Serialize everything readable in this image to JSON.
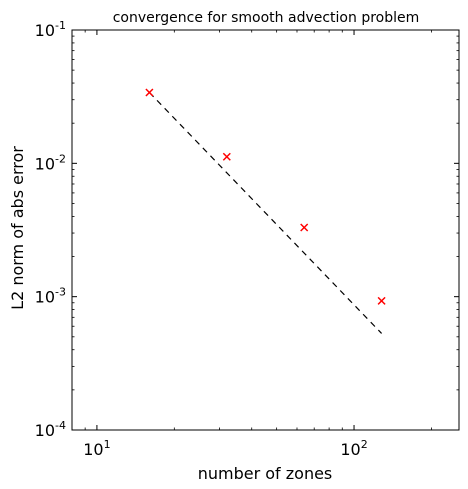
{
  "chart_data": {
    "type": "scatter",
    "title": "convergence for smooth advection problem",
    "xlabel": "number of zones",
    "ylabel": "L2 norm of abs error",
    "x_scale": "log",
    "y_scale": "log",
    "xlim": [
      8,
      256
    ],
    "ylim": [
      0.0001,
      0.1
    ],
    "grid": false,
    "x_ticks": [
      {
        "value": 10,
        "base": "10",
        "exp": "1"
      },
      {
        "value": 100,
        "base": "10",
        "exp": "2"
      }
    ],
    "y_ticks": [
      {
        "value": 0.1,
        "base": "10",
        "exp": "-1"
      },
      {
        "value": 0.01,
        "base": "10",
        "exp": "-2"
      },
      {
        "value": 0.001,
        "base": "10",
        "exp": "-3"
      },
      {
        "value": 0.0001,
        "base": "10",
        "exp": "-4"
      }
    ],
    "series": [
      {
        "marker": "x",
        "color": "#ff0000",
        "x": [
          16,
          32,
          64,
          128
        ],
        "y": [
          0.034,
          0.0112,
          0.0033,
          0.00093
        ]
      }
    ],
    "reference_line": {
      "style": "dashed",
      "color": "#000000",
      "x": [
        16,
        128
      ],
      "y": [
        0.034,
        0.00053
      ]
    }
  }
}
